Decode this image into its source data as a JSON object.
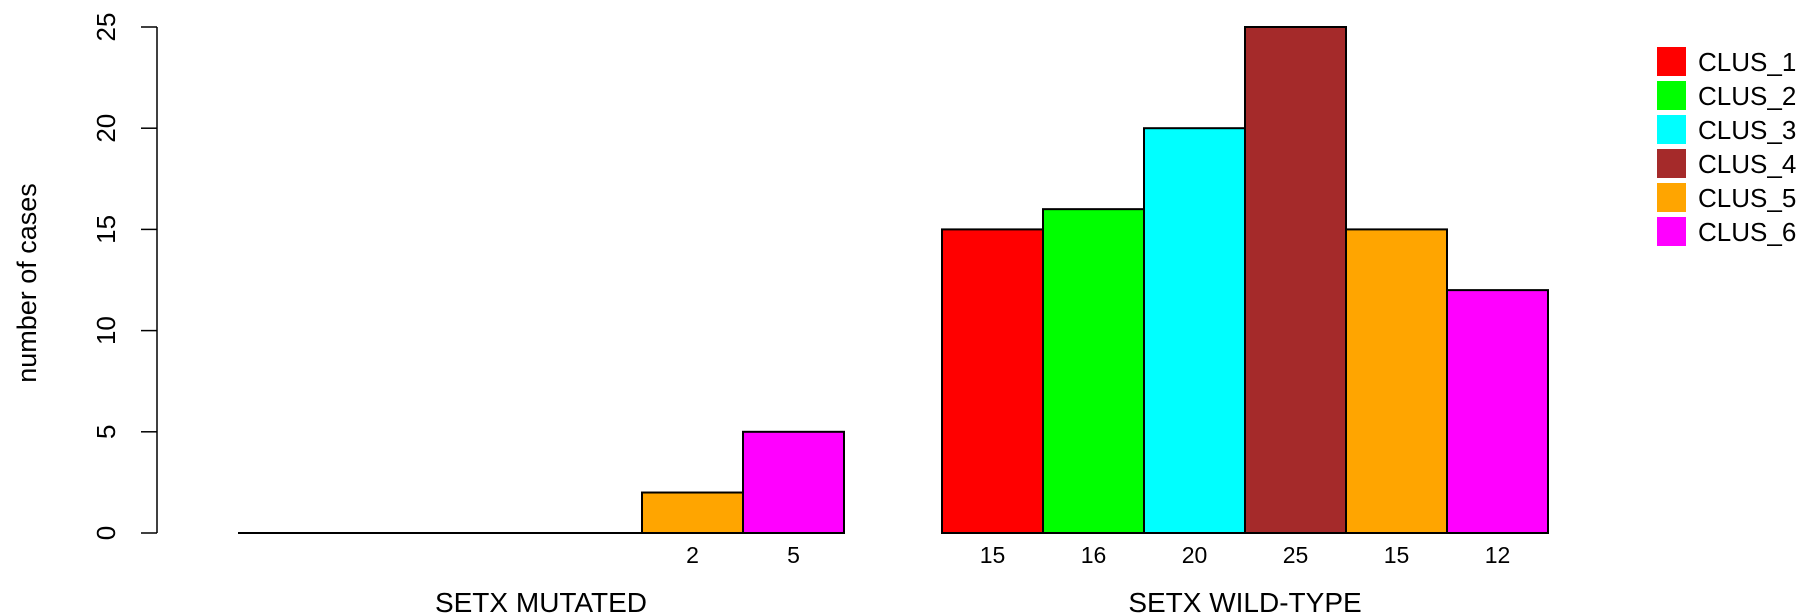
{
  "chart_data": {
    "type": "bar",
    "groups": [
      "SETX MUTATED",
      "SETX WILD-TYPE"
    ],
    "ylabel": "number of cases",
    "ylim": [
      0,
      25
    ],
    "yticks": [
      0,
      5,
      10,
      15,
      20,
      25
    ],
    "series": [
      {
        "name": "CLUS_1",
        "color": "#ff0000",
        "values": [
          0,
          15
        ]
      },
      {
        "name": "CLUS_2",
        "color": "#00ff00",
        "values": [
          0,
          16
        ]
      },
      {
        "name": "CLUS_3",
        "color": "#00ffff",
        "values": [
          0,
          20
        ]
      },
      {
        "name": "CLUS_4",
        "color": "#a52a2a",
        "values": [
          0,
          25
        ]
      },
      {
        "name": "CLUS_5",
        "color": "#ffa500",
        "values": [
          2,
          15
        ]
      },
      {
        "name": "CLUS_6",
        "color": "#ff00ff",
        "values": [
          5,
          12
        ]
      }
    ],
    "value_labels": [
      [
        "",
        "",
        "",
        "",
        "2",
        "5"
      ],
      [
        "15",
        "16",
        "20",
        "25",
        "15",
        "12"
      ]
    ],
    "legend_position": "top-right",
    "grid": false
  }
}
